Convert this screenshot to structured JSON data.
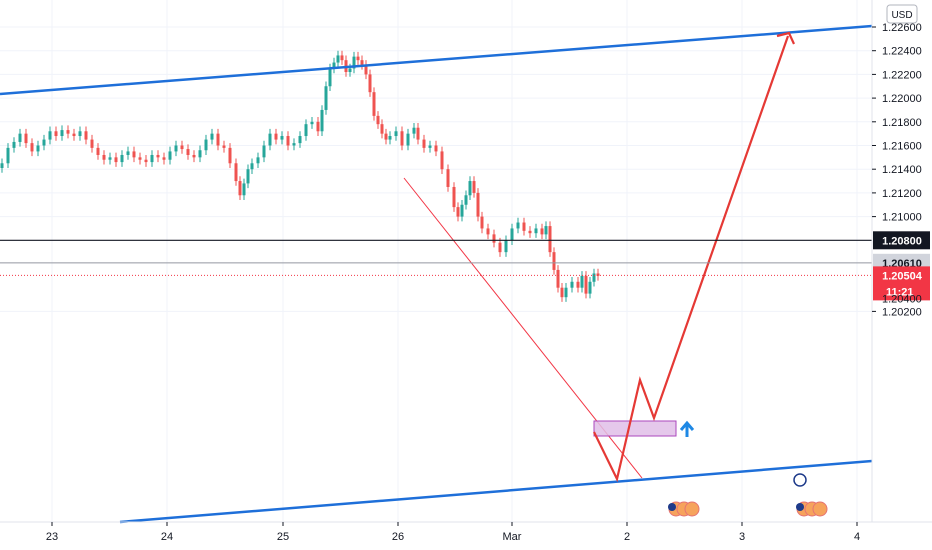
{
  "chart_data": {
    "type": "candlestick",
    "currency": "USD",
    "y_ticks": [
      "1.22600",
      "1.22400",
      "1.22200",
      "1.22000",
      "1.21800",
      "1.21600",
      "1.21400",
      "1.21200",
      "1.21000",
      "1.20200"
    ],
    "y_tick_values": [
      1.226,
      1.224,
      1.222,
      1.22,
      1.218,
      1.216,
      1.214,
      1.212,
      1.21,
      1.202
    ],
    "x_ticks": [
      "23",
      "24",
      "25",
      "26",
      "Mar",
      "2",
      "3",
      "4"
    ],
    "ylim": [
      1.2015,
      1.2265
    ],
    "levels": [
      {
        "label": "1.20800",
        "value": 1.208,
        "color": "#131722"
      },
      {
        "label": "1.20610",
        "value": 1.2061,
        "color": "#9598a1"
      }
    ],
    "current_price": {
      "label": "1.20504",
      "countdown": "11:21",
      "value": 1.20504,
      "color": "#f23645"
    },
    "overlap_tick": "1.20400",
    "candles_close_path": [
      [
        0,
        1.2145
      ],
      [
        6,
        1.2158
      ],
      [
        12,
        1.2163
      ],
      [
        18,
        1.217
      ],
      [
        24,
        1.2162
      ],
      [
        30,
        1.2155
      ],
      [
        36,
        1.216
      ],
      [
        42,
        1.2165
      ],
      [
        48,
        1.2172
      ],
      [
        54,
        1.2168
      ],
      [
        60,
        1.2173
      ],
      [
        66,
        1.217
      ],
      [
        72,
        1.2168
      ],
      [
        78,
        1.2172
      ],
      [
        84,
        1.2165
      ],
      [
        90,
        1.2158
      ],
      [
        96,
        1.2152
      ],
      [
        102,
        1.2148
      ],
      [
        108,
        1.215
      ],
      [
        114,
        1.2146
      ],
      [
        120,
        1.2152
      ],
      [
        126,
        1.2155
      ],
      [
        132,
        1.215
      ],
      [
        138,
        1.2148
      ],
      [
        144,
        1.2146
      ],
      [
        150,
        1.2152
      ],
      [
        156,
        1.215
      ],
      [
        162,
        1.2148
      ],
      [
        168,
        1.2155
      ],
      [
        174,
        1.216
      ],
      [
        180,
        1.2157
      ],
      [
        186,
        1.2152
      ],
      [
        192,
        1.215
      ],
      [
        198,
        1.2156
      ],
      [
        204,
        1.2165
      ],
      [
        210,
        1.217
      ],
      [
        216,
        1.216
      ],
      [
        222,
        1.2158
      ],
      [
        228,
        1.2145
      ],
      [
        234,
        1.213
      ],
      [
        238,
        1.2118
      ],
      [
        242,
        1.2128
      ],
      [
        246,
        1.214
      ],
      [
        250,
        1.2145
      ],
      [
        256,
        1.215
      ],
      [
        262,
        1.216
      ],
      [
        268,
        1.217
      ],
      [
        274,
        1.2165
      ],
      [
        280,
        1.2168
      ],
      [
        286,
        1.216
      ],
      [
        292,
        1.2162
      ],
      [
        298,
        1.2168
      ],
      [
        304,
        1.2178
      ],
      [
        310,
        1.218
      ],
      [
        316,
        1.2172
      ],
      [
        320,
        1.219
      ],
      [
        324,
        1.221
      ],
      [
        328,
        1.2225
      ],
      [
        332,
        1.223
      ],
      [
        336,
        1.2236
      ],
      [
        340,
        1.2232
      ],
      [
        344,
        1.2222
      ],
      [
        348,
        1.2225
      ],
      [
        352,
        1.2235
      ],
      [
        356,
        1.2232
      ],
      [
        360,
        1.2228
      ],
      [
        364,
        1.222
      ],
      [
        368,
        1.2205
      ],
      [
        372,
        1.2185
      ],
      [
        376,
        1.2178
      ],
      [
        380,
        1.217
      ],
      [
        384,
        1.2165
      ],
      [
        388,
        1.2168
      ],
      [
        394,
        1.2172
      ],
      [
        400,
        1.216
      ],
      [
        406,
        1.217
      ],
      [
        412,
        1.2175
      ],
      [
        416,
        1.2165
      ],
      [
        422,
        1.2158
      ],
      [
        428,
        1.216
      ],
      [
        434,
        1.2155
      ],
      [
        440,
        1.214
      ],
      [
        446,
        1.2125
      ],
      [
        452,
        1.2108
      ],
      [
        456,
        1.21
      ],
      [
        460,
        1.211
      ],
      [
        464,
        1.2118
      ],
      [
        468,
        1.213
      ],
      [
        472,
        1.212
      ],
      [
        476,
        1.21
      ],
      [
        480,
        1.209
      ],
      [
        486,
        1.2085
      ],
      [
        492,
        1.2078
      ],
      [
        498,
        1.207
      ],
      [
        504,
        1.208
      ],
      [
        510,
        1.209
      ],
      [
        516,
        1.2095
      ],
      [
        522,
        1.2088
      ],
      [
        528,
        1.2086
      ],
      [
        534,
        1.209
      ],
      [
        540,
        1.2085
      ],
      [
        544,
        1.2092
      ],
      [
        548,
        1.207
      ],
      [
        552,
        1.2055
      ],
      [
        556,
        1.204
      ],
      [
        560,
        1.2032
      ],
      [
        564,
        1.204
      ],
      [
        570,
        1.2045
      ],
      [
        576,
        1.204
      ],
      [
        580,
        1.205
      ],
      [
        584,
        1.2035
      ],
      [
        588,
        1.2045
      ],
      [
        592,
        1.2052
      ],
      [
        596,
        1.205
      ]
    ]
  }
}
